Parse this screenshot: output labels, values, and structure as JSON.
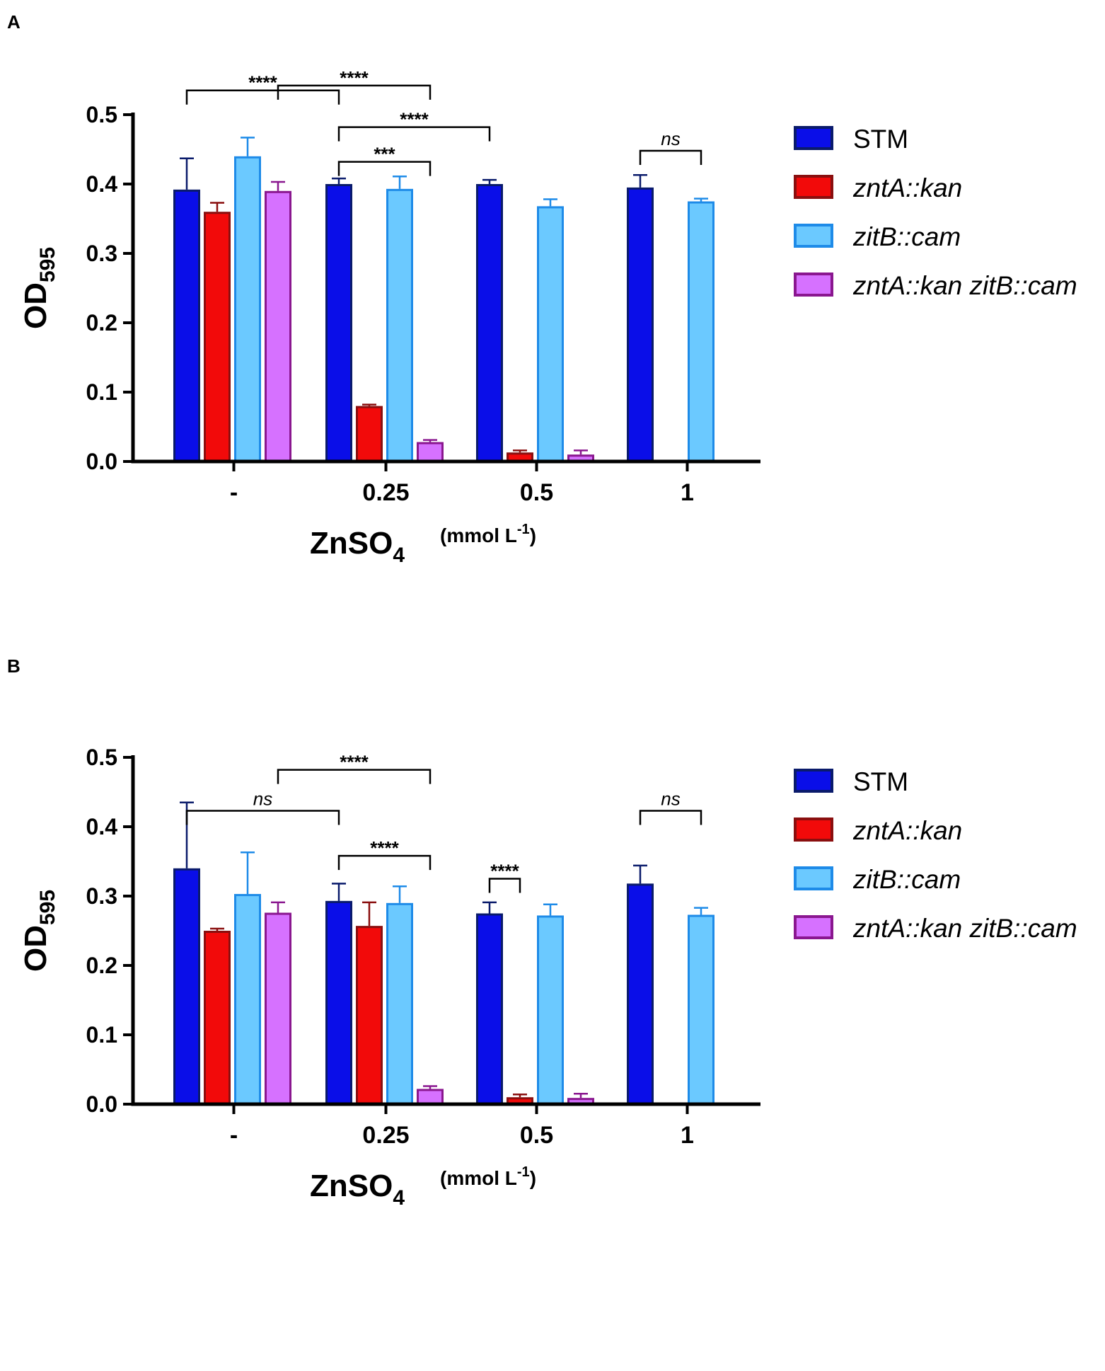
{
  "chart_data": [
    {
      "panel": "A",
      "type": "bar",
      "categories": [
        "-",
        "0.25",
        "0.5",
        "1"
      ],
      "xlabel": {
        "main": "ZnSO",
        "sub": "4",
        "unit": "(mmol L",
        "unit_sup": "-1",
        "unit_close": ")"
      },
      "ylabel": {
        "main": "OD",
        "sub": "595"
      },
      "ylim": [
        0,
        0.5
      ],
      "yticks": [
        "0.0",
        "0.1",
        "0.2",
        "0.3",
        "0.4",
        "0.5"
      ],
      "legend_position": "right",
      "series": [
        {
          "name": "STM",
          "italic": false,
          "fill": "#0a0ee8",
          "stroke": "#0a1b6b",
          "values": [
            0.392,
            0.4,
            0.4,
            0.395
          ],
          "errors": [
            0.045,
            0.008,
            0.006,
            0.018
          ]
        },
        {
          "name": "zntA::kan",
          "italic": true,
          "fill": "#f20a0a",
          "stroke": "#8a0f0f",
          "values": [
            0.36,
            0.08,
            0.013,
            0.0
          ],
          "errors": [
            0.013,
            0.002,
            0.003,
            0.0
          ]
        },
        {
          "name": "zitB::cam",
          "italic": true,
          "fill": "#6bc9ff",
          "stroke": "#1e8be8",
          "values": [
            0.44,
            0.393,
            0.368,
            0.375
          ],
          "errors": [
            0.027,
            0.018,
            0.01,
            0.004
          ]
        },
        {
          "name": "zntA::kan zitB::cam",
          "italic": true,
          "fill": "#d671ff",
          "stroke": "#8a178f",
          "values": [
            0.39,
            0.028,
            0.01,
            0.002
          ],
          "errors": [
            0.013,
            0.003,
            0.006,
            0.0
          ]
        }
      ],
      "significance": [
        {
          "label": "****",
          "from": [
            0,
            3
          ],
          "to": [
            1,
            3
          ],
          "level": 0.542,
          "ns": false
        },
        {
          "label": "****",
          "from": [
            0,
            0
          ],
          "to": [
            1,
            0
          ],
          "level": 0.535,
          "ns": false
        },
        {
          "label": "****",
          "from": [
            1,
            0
          ],
          "to": [
            2,
            0
          ],
          "level": 0.482,
          "ns": false
        },
        {
          "label": "***",
          "from": [
            1,
            0
          ],
          "to": [
            1,
            3
          ],
          "level": 0.432,
          "ns": false
        },
        {
          "label": "ns",
          "from": [
            3,
            0
          ],
          "to": [
            3,
            2
          ],
          "level": 0.448,
          "ns": true
        }
      ]
    },
    {
      "panel": "B",
      "type": "bar",
      "categories": [
        "-",
        "0.25",
        "0.5",
        "1"
      ],
      "xlabel": {
        "main": "ZnSO",
        "sub": "4",
        "unit": "(mmol L",
        "unit_sup": "-1",
        "unit_close": ")"
      },
      "ylabel": {
        "main": "OD",
        "sub": "595"
      },
      "ylim": [
        0,
        0.5
      ],
      "yticks": [
        "0.0",
        "0.1",
        "0.2",
        "0.3",
        "0.4",
        "0.5"
      ],
      "legend_position": "right",
      "series": [
        {
          "name": "STM",
          "italic": false,
          "fill": "#0a0ee8",
          "stroke": "#0a1b6b",
          "values": [
            0.34,
            0.293,
            0.275,
            0.318
          ],
          "errors": [
            0.095,
            0.025,
            0.016,
            0.026
          ]
        },
        {
          "name": "zntA::kan",
          "italic": true,
          "fill": "#f20a0a",
          "stroke": "#8a0f0f",
          "values": [
            0.25,
            0.257,
            0.01,
            0.0
          ],
          "errors": [
            0.003,
            0.034,
            0.004,
            0.0
          ]
        },
        {
          "name": "zitB::cam",
          "italic": true,
          "fill": "#6bc9ff",
          "stroke": "#1e8be8",
          "values": [
            0.303,
            0.29,
            0.272,
            0.273
          ],
          "errors": [
            0.06,
            0.024,
            0.016,
            0.01
          ]
        },
        {
          "name": "zntA::kan zitB::cam",
          "italic": true,
          "fill": "#d671ff",
          "stroke": "#8a178f",
          "values": [
            0.276,
            0.022,
            0.009,
            0.002
          ],
          "errors": [
            0.015,
            0.004,
            0.006,
            0.0
          ]
        }
      ],
      "significance": [
        {
          "label": "****",
          "from": [
            0,
            3
          ],
          "to": [
            1,
            3
          ],
          "level": 0.482,
          "ns": false
        },
        {
          "label": "ns",
          "from": [
            0,
            0
          ],
          "to": [
            1,
            0
          ],
          "level": 0.423,
          "ns": true
        },
        {
          "label": "****",
          "from": [
            1,
            0
          ],
          "to": [
            1,
            3
          ],
          "level": 0.358,
          "ns": false
        },
        {
          "label": "****",
          "from": [
            2,
            0
          ],
          "to": [
            2,
            1
          ],
          "level": 0.325,
          "ns": false
        },
        {
          "label": "ns",
          "from": [
            3,
            0
          ],
          "to": [
            3,
            2
          ],
          "level": 0.423,
          "ns": true
        }
      ]
    }
  ]
}
